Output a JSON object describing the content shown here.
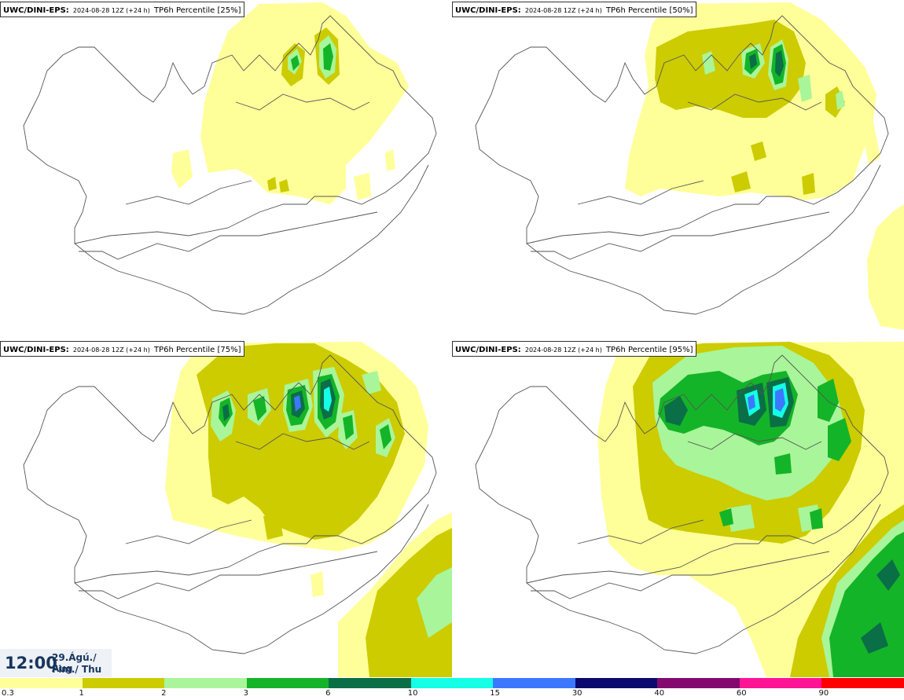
{
  "panels": [
    {
      "model": "UWC/DINI-EPS",
      "run": "2024-08-28 12Z (+24 h)",
      "field": "TP6h Percentile [25%]",
      "percentile": 25
    },
    {
      "model": "UWC/DINI-EPS",
      "run": "2024-08-28 12Z (+24 h)",
      "field": "TP6h Percentile [50%]",
      "percentile": 50
    },
    {
      "model": "UWC/DINI-EPS",
      "run": "2024-08-28 12Z (+24 h)",
      "field": "TP6h Percentile [75%]",
      "percentile": 75
    },
    {
      "model": "UWC/DINI-EPS",
      "run": "2024-08-28 12Z (+24 h)",
      "field": "TP6h Percentile [95%]",
      "percentile": 95
    }
  ],
  "valid": {
    "time": "12:00",
    "date_line1": "29.Ágú./ Aug",
    "date_line2": "Fim./ Thu"
  },
  "legend": {
    "labels": [
      "0.3",
      "1",
      "2",
      "3",
      "6",
      "10",
      "15",
      "30",
      "40",
      "60",
      "90"
    ],
    "colors": [
      "#ffff99",
      "#cccc00",
      "#a9f59a",
      "#14b428",
      "#0a6e46",
      "#14ffe6",
      "#3c78ff",
      "#0a0a6e",
      "#820a6e",
      "#ff1496",
      "#ff0000"
    ]
  },
  "colors": {
    "level1": "#ffff99",
    "level2": "#cccc00",
    "level3": "#a9f59a",
    "level4": "#14b428",
    "level5": "#0a6e46",
    "level6": "#14ffe6",
    "level7": "#3c78ff",
    "coast": "#555555"
  }
}
